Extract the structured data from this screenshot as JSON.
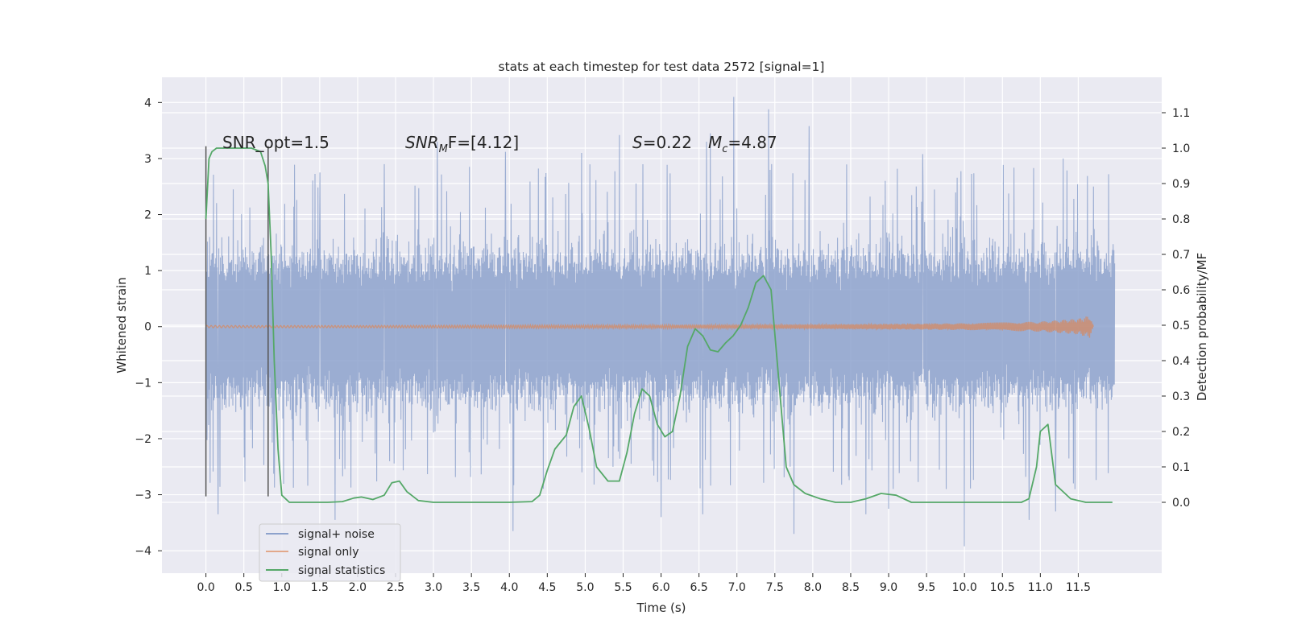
{
  "chart_data": {
    "type": "line",
    "title": "stats at each timestep for test data 2572 [signal=1]",
    "xlabel": "Time (s)",
    "ylabel": "Whitened strain",
    "y2label": "Detection probability/MF",
    "xlim": [
      -0.58,
      12.6
    ],
    "ylim": [
      -4.4,
      4.45
    ],
    "y2lim": [
      -0.2,
      1.2
    ],
    "x_ticks": [
      0.0,
      0.5,
      1.0,
      1.5,
      2.0,
      2.5,
      3.0,
      3.5,
      4.0,
      4.5,
      5.0,
      5.5,
      6.0,
      6.5,
      7.0,
      7.5,
      8.0,
      8.5,
      9.0,
      9.5,
      10.0,
      10.5,
      11.0,
      11.5
    ],
    "x_tick_labels": [
      "0.0",
      "0.5",
      "1.0",
      "1.5",
      "2.0",
      "2.5",
      "3.0",
      "3.5",
      "4.0",
      "4.5",
      "5.0",
      "5.5",
      "6.0",
      "6.5",
      "7.0",
      "7.5",
      "8.0",
      "8.5",
      "9.0",
      "9.5",
      "10.0",
      "10.5",
      "11.0",
      "11.5"
    ],
    "y_ticks": [
      -4,
      -3,
      -2,
      -1,
      0,
      1,
      2,
      3,
      4
    ],
    "y_tick_labels": [
      "−4",
      "−3",
      "−2",
      "−1",
      "0",
      "1",
      "2",
      "3",
      "4"
    ],
    "y2_ticks": [
      0.0,
      0.1,
      0.2,
      0.3,
      0.4,
      0.5,
      0.6,
      0.7,
      0.8,
      0.9,
      1.0,
      1.1
    ],
    "y2_tick_labels": [
      "0.0",
      "0.1",
      "0.2",
      "0.3",
      "0.4",
      "0.5",
      "0.6",
      "0.7",
      "0.8",
      "0.9",
      "1.0",
      "1.1"
    ],
    "grid": true,
    "legend_placement": "lower-left",
    "annotations": {
      "snr_opt": "SNR_opt=1.5",
      "snr_mf_name": "SNR",
      "snr_mf_sub": "M",
      "snr_mf_rest": "F=[4.12]",
      "s_name": "S",
      "s_rest": "=0.22",
      "mc_name": "M",
      "mc_sub": "c",
      "mc_rest": "=4.87"
    },
    "vertical_markers": [
      {
        "x": 0.0,
        "y_range": [
          -3.03,
          3.22
        ]
      },
      {
        "x": 0.82,
        "y_range": [
          -3.03,
          3.22
        ]
      }
    ],
    "series": [
      {
        "name": "signal+ noise",
        "axis": "left",
        "color": "#8da2cc",
        "x_range": [
          0.0,
          11.98
        ],
        "envelope_typical": [
          -1.8,
          1.35
        ],
        "peaks": [
          {
            "x": 0.36,
            "y": 2.45
          },
          {
            "x": 1.5,
            "y": 2.75
          },
          {
            "x": 2.35,
            "y": 2.9
          },
          {
            "x": 3.05,
            "y": 3.3
          },
          {
            "x": 3.95,
            "y": 3.12
          },
          {
            "x": 4.95,
            "y": 3.1
          },
          {
            "x": 5.45,
            "y": 3.42
          },
          {
            "x": 6.6,
            "y": 3.3
          },
          {
            "x": 6.65,
            "y": 3.45
          },
          {
            "x": 6.96,
            "y": 4.1
          },
          {
            "x": 7.42,
            "y": 3.88
          },
          {
            "x": 7.95,
            "y": 3.58
          },
          {
            "x": 9.45,
            "y": 3.08
          },
          {
            "x": 11.3,
            "y": 3.0
          },
          {
            "x": 11.9,
            "y": 2.72
          },
          {
            "x": 0.16,
            "y": -3.35
          },
          {
            "x": 1.7,
            "y": -3.45
          },
          {
            "x": 4.05,
            "y": -3.65
          },
          {
            "x": 6.0,
            "y": -3.4
          },
          {
            "x": 6.55,
            "y": -3.35
          },
          {
            "x": 7.75,
            "y": -3.7
          },
          {
            "x": 8.7,
            "y": -3.35
          },
          {
            "x": 9.0,
            "y": -3.25
          },
          {
            "x": 10.0,
            "y": -3.92
          },
          {
            "x": 10.85,
            "y": -3.45
          },
          {
            "x": 11.2,
            "y": -3.3
          }
        ]
      },
      {
        "name": "signal only",
        "axis": "left",
        "color": "#dd8452",
        "x": [
          0.0,
          2.0,
          4.0,
          6.0,
          8.0,
          10.0,
          11.0,
          11.5,
          11.65,
          11.7
        ],
        "amplitude": [
          0.02,
          0.02,
          0.03,
          0.03,
          0.04,
          0.06,
          0.09,
          0.14,
          0.2,
          0.0
        ]
      },
      {
        "name": "signal statistics",
        "axis": "right",
        "color": "#55a868",
        "x": [
          0.0,
          0.04,
          0.08,
          0.14,
          0.25,
          0.45,
          0.6,
          0.72,
          0.78,
          0.82,
          0.86,
          0.9,
          0.95,
          1.0,
          1.1,
          1.3,
          1.6,
          1.8,
          1.95,
          2.05,
          2.2,
          2.35,
          2.45,
          2.55,
          2.65,
          2.8,
          3.0,
          3.5,
          4.0,
          4.3,
          4.4,
          4.5,
          4.6,
          4.75,
          4.85,
          4.95,
          5.05,
          5.15,
          5.3,
          5.45,
          5.55,
          5.65,
          5.75,
          5.85,
          5.95,
          6.05,
          6.15,
          6.25,
          6.35,
          6.45,
          6.55,
          6.65,
          6.75,
          6.85,
          6.95,
          7.05,
          7.15,
          7.25,
          7.35,
          7.45,
          7.55,
          7.65,
          7.75,
          7.9,
          8.1,
          8.3,
          8.5,
          8.7,
          8.9,
          9.1,
          9.3,
          9.5,
          10.0,
          10.5,
          10.75,
          10.85,
          10.95,
          11.0,
          11.1,
          11.2,
          11.4,
          11.6,
          11.95
        ],
        "values": [
          0.8,
          0.97,
          0.99,
          1.0,
          1.0,
          1.0,
          1.0,
          0.99,
          0.95,
          0.9,
          0.7,
          0.4,
          0.15,
          0.02,
          0.0,
          0.0,
          0.0,
          0.002,
          0.012,
          0.015,
          0.008,
          0.02,
          0.055,
          0.06,
          0.03,
          0.005,
          0.0,
          0.0,
          0.0,
          0.002,
          0.02,
          0.09,
          0.15,
          0.19,
          0.27,
          0.3,
          0.21,
          0.1,
          0.06,
          0.06,
          0.14,
          0.25,
          0.32,
          0.3,
          0.22,
          0.185,
          0.2,
          0.3,
          0.44,
          0.49,
          0.47,
          0.43,
          0.425,
          0.45,
          0.47,
          0.5,
          0.55,
          0.62,
          0.64,
          0.6,
          0.35,
          0.1,
          0.05,
          0.025,
          0.01,
          0.0,
          0.0,
          0.01,
          0.025,
          0.02,
          0.0,
          0.0,
          0.0,
          0.0,
          0.0,
          0.01,
          0.1,
          0.2,
          0.22,
          0.05,
          0.01,
          0.0,
          0.0
        ]
      }
    ]
  }
}
